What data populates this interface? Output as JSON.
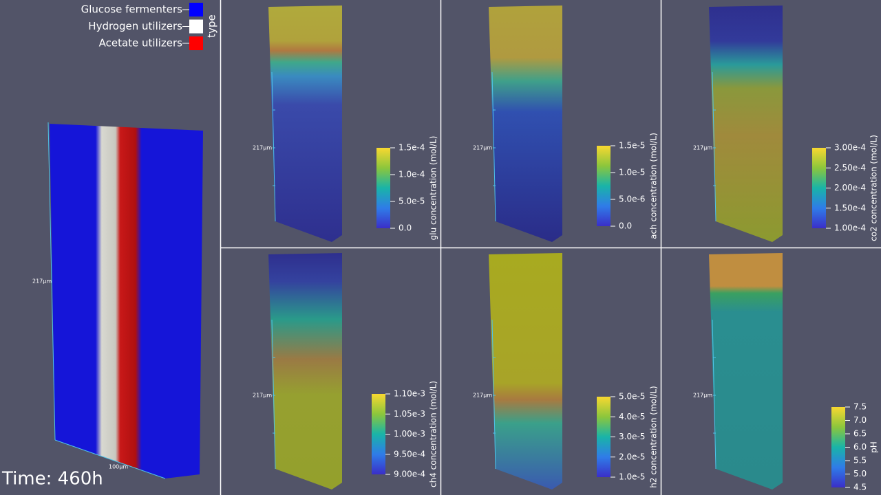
{
  "legend": {
    "title": "type",
    "items": [
      {
        "label": "Glucose fermenters",
        "color": "#0000ff"
      },
      {
        "label": "Hydrogen utilizers",
        "color": "#ffffff"
      },
      {
        "label": "Acetate utilizers",
        "color": "#ff0000"
      }
    ]
  },
  "time": "Time: 460h",
  "left_panel": {
    "y_scale": "217µm",
    "x_scale": "100µm"
  },
  "panels": [
    {
      "scale": "217µm",
      "colorbar": {
        "label": "glu concentration (mol/L)",
        "ticks": [
          "1.5e-4",
          "1.0e-4",
          "5.0e-5",
          "0.0"
        ]
      }
    },
    {
      "scale": "217µm",
      "colorbar": {
        "label": "ach concentration (mol/L)",
        "ticks": [
          "1.5e-5",
          "1.0e-5",
          "5.0e-6",
          "0.0"
        ]
      }
    },
    {
      "scale": "217µm",
      "colorbar": {
        "label": "co2 concentration (mol/L)",
        "ticks": [
          "3.00e-4",
          "2.50e-4",
          "2.00e-4",
          "1.50e-4",
          "1.00e-4"
        ]
      }
    },
    {
      "scale": "217µm",
      "colorbar": {
        "label": "ch4 concentration (mol/L)",
        "ticks": [
          "1.10e-3",
          "1.05e-3",
          "1.00e-3",
          "9.50e-4",
          "9.00e-4"
        ]
      }
    },
    {
      "scale": "217µm",
      "colorbar": {
        "label": "h2 concentration (mol/L)",
        "ticks": [
          "5.0e-5",
          "4.0e-5",
          "3.0e-5",
          "2.0e-5",
          "1.0e-5"
        ]
      }
    },
    {
      "scale": "217µm",
      "colorbar": {
        "label": "pH",
        "ticks": [
          "7.5",
          "7.0",
          "6.5",
          "6.0",
          "5.5",
          "5.0",
          "4.5"
        ]
      }
    }
  ]
}
